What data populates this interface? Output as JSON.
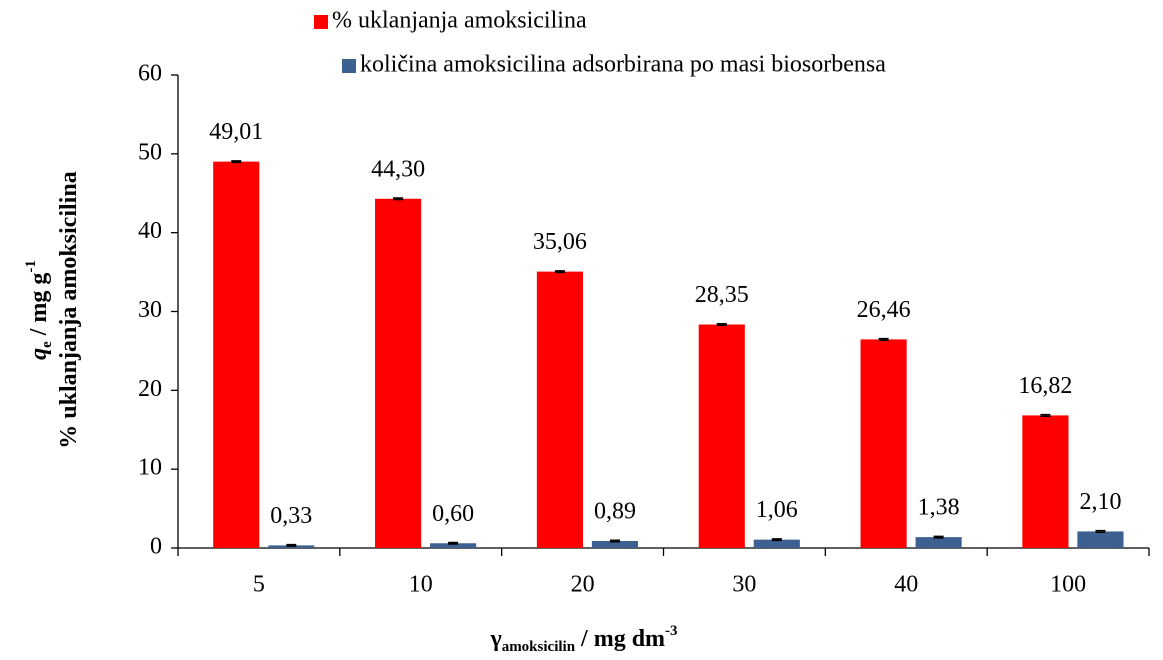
{
  "chart_data": {
    "type": "bar",
    "categories": [
      "5",
      "10",
      "20",
      "30",
      "40",
      "100"
    ],
    "series": [
      {
        "name": "% uklanjanja amoksicilina",
        "color": "#ff0000",
        "values": [
          49.01,
          44.3,
          35.06,
          28.35,
          26.46,
          16.82
        ],
        "value_labels": [
          "49,01",
          "44,30",
          "35,06",
          "28,35",
          "26,46",
          "16,82"
        ],
        "errors": [
          0.1,
          0.1,
          0.1,
          0.1,
          0.1,
          0.1
        ]
      },
      {
        "name": "količina amoksicilina adsorbirana po masi biosorbensa",
        "color": "#3c6090",
        "values": [
          0.33,
          0.6,
          0.89,
          1.06,
          1.38,
          2.1
        ],
        "value_labels": [
          "0,33",
          "0,60",
          "0,89",
          "1,06",
          "1,38",
          "2,10"
        ],
        "errors": [
          0.1,
          0.1,
          0.1,
          0.1,
          0.1,
          0.1
        ]
      }
    ],
    "ylim": [
      0,
      60
    ],
    "yticks": [
      0,
      10,
      20,
      30,
      40,
      50,
      60
    ],
    "y_label_lines": [
      [
        {
          "text": "q",
          "style": "italic"
        },
        {
          "text": "e",
          "style": "sub"
        },
        {
          "text": " / mg g"
        },
        {
          "text": "-1",
          "style": "sup"
        }
      ],
      [
        {
          "text": "% uklanjanja amoksicilina"
        }
      ]
    ],
    "x_label": [
      {
        "text": "γ"
      },
      {
        "text": "amoksicilin",
        "style": "sub"
      },
      {
        "text": " / mg dm"
      },
      {
        "text": "-3",
        "style": "sup"
      }
    ],
    "legend": "top"
  }
}
